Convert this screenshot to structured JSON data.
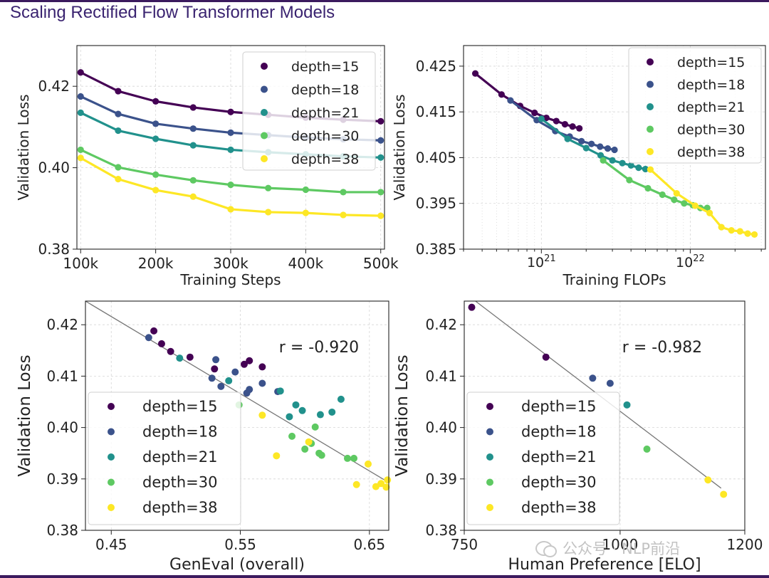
{
  "slide": {
    "title": "Scaling Rectified Flow Transformer Models"
  },
  "watermark": {
    "text": "公众号 · NLP前沿"
  },
  "colors": {
    "depth=15": "#440154",
    "depth=18": "#3b528b",
    "depth=21": "#21918c",
    "depth=30": "#5ec962",
    "depth=38": "#fde725"
  },
  "chart_data": [
    {
      "type": "line",
      "xlabel": "Training Steps",
      "ylabel": "Validation Loss",
      "xlim": [
        95000,
        505000
      ],
      "ylim": [
        0.38,
        0.43
      ],
      "xticks": [
        100000,
        200000,
        300000,
        400000,
        500000
      ],
      "xtick_labels": [
        "100k",
        "200k",
        "300k",
        "400k",
        "500k"
      ],
      "yticks": [
        0.38,
        0.4,
        0.42
      ],
      "ytick_labels": [
        "0.38",
        "0.40",
        "0.42"
      ],
      "legend": "top-right",
      "grid": true,
      "x": [
        100000,
        150000,
        200000,
        250000,
        300000,
        350000,
        400000,
        450000,
        500000
      ],
      "series": [
        {
          "name": "depth=15",
          "values": [
            0.4234,
            0.4188,
            0.4163,
            0.4148,
            0.4137,
            0.413,
            0.4123,
            0.4118,
            0.4114
          ]
        },
        {
          "name": "depth=18",
          "values": [
            0.4175,
            0.4132,
            0.4108,
            0.4096,
            0.4086,
            0.408,
            0.4074,
            0.407,
            0.4067
          ]
        },
        {
          "name": "depth=21",
          "values": [
            0.4135,
            0.4091,
            0.4071,
            0.4055,
            0.4044,
            0.4038,
            0.4033,
            0.4028,
            0.4025
          ]
        },
        {
          "name": "depth=30",
          "values": [
            0.4044,
            0.4001,
            0.3983,
            0.3969,
            0.3958,
            0.395,
            0.3946,
            0.394,
            0.394
          ]
        },
        {
          "name": "depth=38",
          "values": [
            0.4024,
            0.3972,
            0.3945,
            0.3929,
            0.3898,
            0.3891,
            0.3889,
            0.3884,
            0.3882
          ]
        }
      ]
    },
    {
      "type": "line",
      "xlabel": "Training FLOPs",
      "ylabel": "Validation Loss",
      "xscale": "log",
      "xlim": [
        3e+20,
        3.2e+22
      ],
      "ylim": [
        0.385,
        0.4295
      ],
      "xtick_labels": [
        "10^21",
        "10^22"
      ],
      "yticks": [
        0.385,
        0.395,
        0.405,
        0.415,
        0.425
      ],
      "ytick_labels": [
        "0.385",
        "0.395",
        "0.405",
        "0.415",
        "0.425"
      ],
      "legend": "top-right",
      "grid": true,
      "series": [
        {
          "name": "depth=15",
          "x": [
            3.6e+20,
            5.4e+20,
            7.2e+20,
            9e+20,
            1.08e+21,
            1.26e+21,
            1.44e+21,
            1.62e+21,
            1.8e+21
          ],
          "values": [
            0.4234,
            0.4188,
            0.4163,
            0.4148,
            0.4137,
            0.413,
            0.4123,
            0.4118,
            0.4114
          ]
        },
        {
          "name": "depth=18",
          "x": [
            6.2e+20,
            9.3e+20,
            1.24e+21,
            1.55e+21,
            1.86e+21,
            2.17e+21,
            2.48e+21,
            2.79e+21,
            3.1e+21
          ],
          "values": [
            0.4175,
            0.4132,
            0.4108,
            0.4096,
            0.4086,
            0.408,
            0.4074,
            0.407,
            0.4067
          ]
        },
        {
          "name": "depth=21",
          "x": [
            1e+21,
            1.5e+21,
            2e+21,
            2.5e+21,
            3e+21,
            3.5e+21,
            4e+21,
            4.5e+21,
            5e+21
          ],
          "values": [
            0.4135,
            0.4091,
            0.4071,
            0.4055,
            0.4044,
            0.4038,
            0.4033,
            0.4028,
            0.4025
          ]
        },
        {
          "name": "depth=30",
          "x": [
            2.6e+21,
            3.9e+21,
            5.2e+21,
            6.5e+21,
            7.8e+21,
            9.1e+21,
            1.04e+22,
            1.17e+22,
            1.3e+22
          ],
          "values": [
            0.4044,
            0.4001,
            0.3983,
            0.3969,
            0.3958,
            0.395,
            0.3946,
            0.394,
            0.394
          ]
        },
        {
          "name": "depth=38",
          "x": [
            5.4e+21,
            8.1e+21,
            1.08e+22,
            1.35e+22,
            1.62e+22,
            1.89e+22,
            2.16e+22,
            2.43e+22,
            2.7e+22
          ],
          "values": [
            0.4024,
            0.3972,
            0.3945,
            0.3929,
            0.3898,
            0.3891,
            0.3889,
            0.3884,
            0.3882
          ]
        }
      ]
    },
    {
      "type": "scatter",
      "xlabel": "GenEval (overall)",
      "ylabel": "Validation Loss",
      "xlim": [
        0.43,
        0.665
      ],
      "ylim": [
        0.38,
        0.4246
      ],
      "xticks": [
        0.45,
        0.55,
        0.65
      ],
      "xtick_labels": [
        "0.45",
        "0.55",
        "0.65"
      ],
      "yticks": [
        0.38,
        0.39,
        0.4,
        0.41,
        0.42
      ],
      "ytick_labels": [
        "0.38",
        "0.39",
        "0.40",
        "0.41",
        "0.42"
      ],
      "annotation": "r = -0.920",
      "legend": "lower-left",
      "grid": true,
      "fit_line": {
        "x": [
          0.43,
          0.665
        ],
        "y": [
          0.4246,
          0.3893
        ]
      },
      "series": [
        {
          "name": "depth=15",
          "points": [
            [
              0.483,
              0.4188
            ],
            [
              0.489,
              0.4163
            ],
            [
              0.496,
              0.4148
            ],
            [
              0.511,
              0.4137
            ],
            [
              0.53,
              0.4114
            ],
            [
              0.553,
              0.4123
            ],
            [
              0.557,
              0.413
            ],
            [
              0.567,
              0.4118
            ]
          ]
        },
        {
          "name": "depth=18",
          "points": [
            [
              0.479,
              0.4175
            ],
            [
              0.528,
              0.4096
            ],
            [
              0.531,
              0.4132
            ],
            [
              0.535,
              0.408
            ],
            [
              0.546,
              0.4108
            ],
            [
              0.555,
              0.4067
            ],
            [
              0.557,
              0.4074
            ],
            [
              0.567,
              0.4086
            ],
            [
              0.579,
              0.407
            ]
          ]
        },
        {
          "name": "depth=21",
          "points": [
            [
              0.503,
              0.4135
            ],
            [
              0.541,
              0.4091
            ],
            [
              0.581,
              0.4071
            ],
            [
              0.588,
              0.4021
            ],
            [
              0.593,
              0.4044
            ],
            [
              0.598,
              0.4033
            ],
            [
              0.612,
              0.4025
            ],
            [
              0.621,
              0.403
            ],
            [
              0.628,
              0.4055
            ]
          ]
        },
        {
          "name": "depth=30",
          "points": [
            [
              0.549,
              0.4044
            ],
            [
              0.59,
              0.3983
            ],
            [
              0.6,
              0.3958
            ],
            [
              0.605,
              0.3969
            ],
            [
              0.608,
              0.4001
            ],
            [
              0.611,
              0.395
            ],
            [
              0.613,
              0.3946
            ],
            [
              0.633,
              0.394
            ],
            [
              0.638,
              0.394
            ]
          ]
        },
        {
          "name": "depth=38",
          "points": [
            [
              0.567,
              0.4024
            ],
            [
              0.578,
              0.3945
            ],
            [
              0.603,
              0.3972
            ],
            [
              0.649,
              0.3929
            ],
            [
              0.64,
              0.3889
            ],
            [
              0.655,
              0.3885
            ],
            [
              0.659,
              0.3891
            ],
            [
              0.663,
              0.3884
            ],
            [
              0.664,
              0.3898
            ]
          ]
        }
      ]
    },
    {
      "type": "scatter",
      "xlabel": "Human Preference [ELO]",
      "ylabel": "Validation Loss",
      "xlim": [
        750,
        1200
      ],
      "ylim": [
        0.38,
        0.4246
      ],
      "xticks": [
        750,
        1000,
        1200
      ],
      "xtick_labels": [
        "750",
        "1000",
        "1200"
      ],
      "yticks": [
        0.38,
        0.39,
        0.4,
        0.41,
        0.42
      ],
      "ytick_labels": [
        "0.38",
        "0.39",
        "0.40",
        "0.41",
        "0.42"
      ],
      "annotation": "r = -0.982",
      "legend": "lower-left",
      "grid": true,
      "fit_line": {
        "x": [
          768,
          1162
        ],
        "y": [
          0.4246,
          0.3882
        ]
      },
      "series": [
        {
          "name": "depth=15",
          "points": [
            [
              762,
              0.4234
            ],
            [
              881,
              0.4137
            ]
          ]
        },
        {
          "name": "depth=18",
          "points": [
            [
              956,
              0.4096
            ],
            [
              984,
              0.4086
            ]
          ]
        },
        {
          "name": "depth=21",
          "points": [
            [
              1011,
              0.4044
            ]
          ]
        },
        {
          "name": "depth=30",
          "points": [
            [
              1043,
              0.3958
            ]
          ]
        },
        {
          "name": "depth=38",
          "points": [
            [
              1141,
              0.3898
            ],
            [
              1166,
              0.387
            ]
          ]
        }
      ]
    }
  ]
}
